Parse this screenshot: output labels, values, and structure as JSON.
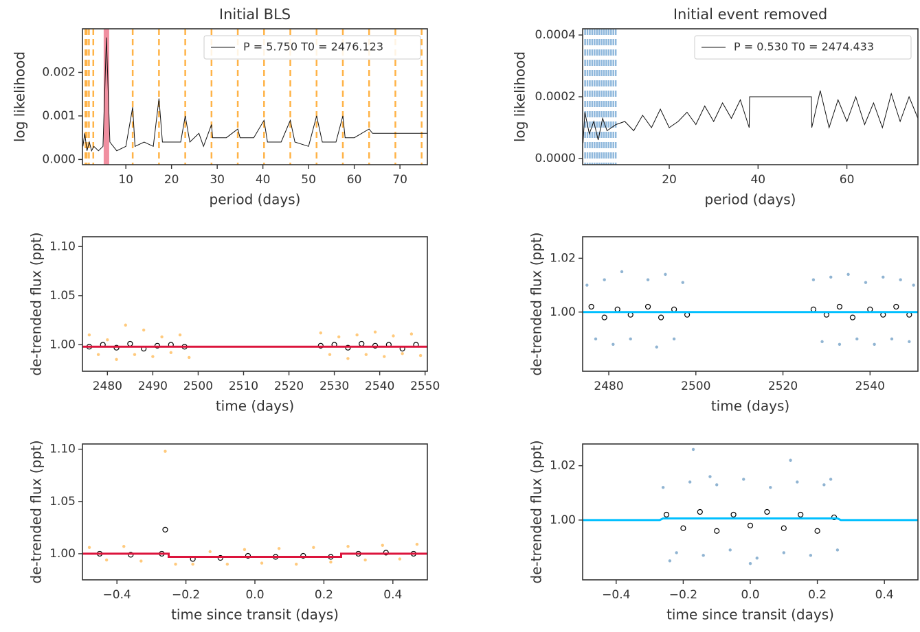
{
  "chart_data": [
    {
      "type": "line",
      "title": "Initial BLS",
      "xlabel": "period (days)",
      "ylabel": "log likelihood",
      "xlim": [
        0.5,
        76
      ],
      "ylim": [
        -0.00012,
        0.003
      ],
      "xticks": [
        10,
        20,
        30,
        40,
        50,
        60,
        70
      ],
      "yticks": [
        {
          "value": 0,
          "label": "0.000"
        },
        {
          "value": 0.001,
          "label": "0.001"
        },
        {
          "value": 0.002,
          "label": "0.002"
        }
      ],
      "legend": "upper right",
      "harmonics": [
        1.15,
        1.4375,
        1.917,
        2.875,
        11.5,
        17.25,
        23,
        28.75,
        34.5,
        40.25,
        46,
        51.75,
        57.5,
        63.25,
        69,
        74.75
      ],
      "harmonic_color": "#ffb347",
      "highlight": 5.75,
      "highlight_color": "#f08fa0",
      "series": [
        {
          "name": "P = 5.750 T0 = 2476.123",
          "style": "line",
          "color": "#111111",
          "x": [
            0.6,
            1,
            1.5,
            2,
            2.5,
            3,
            4,
            5,
            5.75,
            6.5,
            8,
            10,
            11.5,
            12,
            14,
            16,
            17.25,
            18,
            20,
            22,
            23,
            24,
            26,
            27,
            28.75,
            29,
            32,
            34.5,
            35,
            38,
            40.25,
            41,
            44,
            46,
            47,
            50,
            51.75,
            53,
            56,
            57.5,
            58,
            60,
            63.25,
            64,
            67,
            69,
            72,
            75,
            76
          ],
          "y": [
            0.0003,
            0.0006,
            0.0002,
            0.0004,
            0.0002,
            0.0003,
            0.0002,
            0.0003,
            0.0028,
            0.0004,
            0.0002,
            0.0003,
            0.0012,
            0.0003,
            0.0004,
            0.0003,
            0.0014,
            0.0004,
            0.0004,
            0.0004,
            0.001,
            0.0004,
            0.0006,
            0.0003,
            0.0008,
            0.0005,
            0.0005,
            0.0007,
            0.0005,
            0.0005,
            0.0009,
            0.0004,
            0.0004,
            0.0009,
            0.0004,
            0.0003,
            0.001,
            0.0004,
            0.0004,
            0.001,
            0.0005,
            0.0005,
            0.0007,
            0.0006,
            0.0006,
            0.0006,
            0.0006,
            0.0006,
            0.0006
          ]
        }
      ]
    },
    {
      "type": "line",
      "title": "Initial event removed",
      "xlabel": "period (days)",
      "ylabel": "log likelihood",
      "xlim": [
        0.5,
        76
      ],
      "ylim": [
        -2e-05,
        0.00042
      ],
      "xticks": [
        20,
        40,
        60
      ],
      "yticks": [
        {
          "value": 0,
          "label": "0.0000"
        },
        {
          "value": 0.0002,
          "label": "0.0002"
        },
        {
          "value": 0.0004,
          "label": "0.0004"
        }
      ],
      "legend": "upper right",
      "harmonics": [
        1.06,
        1.59,
        2.12,
        2.65,
        3.18,
        3.71,
        4.24,
        4.77,
        5.3,
        5.83,
        6.36,
        6.89,
        7.42,
        7.95
      ],
      "harmonic_color": "#8fb8dc",
      "series": [
        {
          "name": "P = 0.530 T0 = 2474.433",
          "style": "line",
          "color": "#111111",
          "x": [
            0.6,
            1,
            2,
            3,
            4,
            5,
            6,
            8,
            10,
            12,
            14,
            16,
            18,
            20,
            22,
            24,
            26,
            28,
            30,
            32,
            34,
            36,
            38,
            38.1,
            52,
            52.1,
            54,
            56,
            58,
            60,
            62,
            64,
            66,
            68,
            70,
            72,
            74,
            76
          ],
          "y": [
            5e-05,
            0.00015,
            8e-05,
            0.00012,
            6e-05,
            0.00013,
            9e-05,
            0.00011,
            0.00012,
            9e-05,
            0.00014,
            0.0001,
            0.00016,
            0.0001,
            0.00012,
            0.00015,
            0.00011,
            0.00017,
            0.00012,
            0.00018,
            0.00013,
            0.00019,
            0.0001,
            0.0002,
            0.0002,
            0.0001,
            0.00022,
            0.0001,
            0.00019,
            0.00012,
            0.0002,
            0.00011,
            0.00018,
            0.0001,
            0.00021,
            0.00012,
            0.0002,
            0.00013
          ]
        }
      ]
    },
    {
      "type": "scatter",
      "xlabel": "time (days)",
      "ylabel": "de-trended flux (ppt)",
      "xlim": [
        2474.5,
        2550.5
      ],
      "ylim": [
        0.973,
        1.11
      ],
      "xticks": [
        2480,
        2490,
        2500,
        2510,
        2520,
        2530,
        2540,
        2550
      ],
      "yticks": [
        {
          "value": 1.0,
          "label": "1.00"
        },
        {
          "value": 1.05,
          "label": "1.05"
        },
        {
          "value": 1.1,
          "label": "1.10"
        }
      ],
      "series": [
        {
          "style": "points",
          "color": "#ffa726",
          "x": [
            2476,
            2478,
            2480,
            2482,
            2484,
            2486,
            2488,
            2490,
            2492,
            2494,
            2496,
            2498,
            2527,
            2529,
            2531,
            2533,
            2535,
            2537,
            2539,
            2541,
            2543,
            2545,
            2547,
            2549
          ],
          "y": [
            1.01,
            0.99,
            1.005,
            0.985,
            1.02,
            0.99,
            1.015,
            0.988,
            1.008,
            0.992,
            1.01,
            0.987,
            1.012,
            0.99,
            1.008,
            0.986,
            1.01,
            0.99,
            1.013,
            0.988,
            1.009,
            0.991,
            1.011,
            0.989
          ]
        },
        {
          "style": "circles",
          "color": "#000000",
          "x": [
            2476,
            2479,
            2482,
            2485,
            2488,
            2491,
            2494,
            2497,
            2527,
            2530,
            2533,
            2536,
            2539,
            2542,
            2545,
            2548
          ],
          "y": [
            0.998,
            1.0,
            0.997,
            1.001,
            0.996,
            0.999,
            1.0,
            0.998,
            0.999,
            1.0,
            0.997,
            1.001,
            0.999,
            1.0,
            0.996,
            1.0
          ]
        },
        {
          "style": "line",
          "color": "#dc143c",
          "x": [
            2474.5,
            2550.5
          ],
          "y": [
            0.998,
            0.998
          ]
        }
      ]
    },
    {
      "type": "scatter",
      "xlabel": "time (days)",
      "ylabel": "de-trended flux (ppt)",
      "xlim": [
        2474,
        2551
      ],
      "ylim": [
        0.978,
        1.028
      ],
      "xticks": [
        2480,
        2500,
        2520,
        2540
      ],
      "yticks": [
        {
          "value": 1.0,
          "label": "1.00"
        },
        {
          "value": 1.02,
          "label": "1.02"
        }
      ],
      "series": [
        {
          "style": "points",
          "color": "#4682b4",
          "x": [
            2475,
            2477,
            2479,
            2481,
            2483,
            2485,
            2489,
            2491,
            2493,
            2495,
            2497,
            2527,
            2529,
            2531,
            2533,
            2535,
            2537,
            2539,
            2541,
            2543,
            2545,
            2547,
            2549,
            2550
          ],
          "y": [
            1.01,
            0.99,
            1.012,
            0.988,
            1.015,
            0.99,
            1.012,
            0.987,
            1.014,
            0.99,
            1.011,
            1.012,
            0.989,
            1.013,
            0.988,
            1.014,
            0.99,
            1.011,
            0.988,
            1.013,
            0.99,
            1.012,
            0.989,
            1.01
          ]
        },
        {
          "style": "circles",
          "color": "#000000",
          "x": [
            2476,
            2479,
            2482,
            2485,
            2489,
            2492,
            2495,
            2498,
            2527,
            2530,
            2533,
            2536,
            2540,
            2543,
            2546,
            2549
          ],
          "y": [
            1.002,
            0.998,
            1.001,
            0.999,
            1.002,
            0.998,
            1.001,
            0.999,
            1.001,
            0.999,
            1.002,
            0.998,
            1.001,
            0.999,
            1.002,
            0.999
          ]
        },
        {
          "style": "line",
          "color": "#00bfff",
          "x": [
            2474,
            2551
          ],
          "y": [
            1.0,
            1.0
          ]
        }
      ]
    },
    {
      "type": "scatter",
      "xlabel": "time since transit (days)",
      "ylabel": "de-trended flux (ppt)",
      "xlim": [
        -0.5,
        0.5
      ],
      "ylim": [
        0.975,
        1.105
      ],
      "xticks": [
        {
          "value": -0.4,
          "label": "−0.4"
        },
        {
          "value": -0.2,
          "label": "−0.2"
        },
        {
          "value": 0,
          "label": "0.0"
        },
        0.2,
        0.4
      ],
      "yticks": [
        {
          "value": 1.0,
          "label": "1.00"
        },
        {
          "value": 1.05,
          "label": "1.05"
        },
        {
          "value": 1.1,
          "label": "1.10"
        }
      ],
      "series": [
        {
          "style": "points",
          "color": "#ffa726",
          "x": [
            -0.48,
            -0.43,
            -0.38,
            -0.33,
            -0.26,
            -0.23,
            -0.18,
            -0.13,
            -0.08,
            -0.03,
            0.02,
            0.07,
            0.12,
            0.17,
            0.22,
            0.27,
            0.32,
            0.37,
            0.42,
            0.47
          ],
          "y": [
            1.006,
            0.994,
            1.007,
            0.993,
            1.098,
            0.99,
            0.99,
            1.002,
            0.99,
            1.004,
            0.991,
            1.005,
            0.99,
            1.006,
            0.992,
            1.007,
            0.994,
            1.008,
            0.995,
            1.009
          ]
        },
        {
          "style": "circles",
          "color": "#000000",
          "x": [
            -0.45,
            -0.36,
            -0.27,
            -0.26,
            -0.18,
            -0.1,
            -0.02,
            0.06,
            0.14,
            0.22,
            0.3,
            0.38,
            0.46
          ],
          "y": [
            1.0,
            0.999,
            1.0,
            1.023,
            0.995,
            0.996,
            0.998,
            0.997,
            0.998,
            0.997,
            1.0,
            1.001,
            1.0
          ]
        },
        {
          "style": "line",
          "color": "#dc143c",
          "x": [
            -0.5,
            -0.25,
            -0.25,
            0.25,
            0.25,
            0.5
          ],
          "y": [
            1.0,
            1.0,
            0.997,
            0.997,
            1.0,
            1.0
          ]
        }
      ]
    },
    {
      "type": "scatter",
      "xlabel": "time since transit (days)",
      "ylabel": "de-trended flux (ppt)",
      "xlim": [
        -0.5,
        0.5
      ],
      "ylim": [
        0.978,
        1.028
      ],
      "xticks": [
        {
          "value": -0.4,
          "label": "−0.4"
        },
        {
          "value": -0.2,
          "label": "−0.2"
        },
        {
          "value": 0,
          "label": "0.0"
        },
        0.2,
        0.4
      ],
      "yticks": [
        {
          "value": 1.0,
          "label": "1.00"
        },
        {
          "value": 1.02,
          "label": "1.02"
        }
      ],
      "series": [
        {
          "style": "points",
          "color": "#4682b4",
          "x": [
            -0.26,
            -0.22,
            -0.18,
            -0.14,
            -0.1,
            -0.06,
            -0.02,
            0.02,
            0.06,
            0.1,
            0.14,
            0.18,
            0.22,
            0.26,
            -0.24,
            -0.12,
            0.0,
            0.12,
            0.24,
            -0.17
          ],
          "y": [
            1.012,
            0.988,
            1.014,
            0.987,
            1.013,
            0.989,
            1.015,
            0.986,
            1.012,
            0.988,
            1.014,
            0.987,
            1.013,
            0.989,
            0.985,
            1.016,
            0.984,
            1.022,
            1.015,
            1.026
          ]
        },
        {
          "style": "circles",
          "color": "#000000",
          "x": [
            -0.25,
            -0.2,
            -0.15,
            -0.1,
            -0.05,
            0.0,
            0.05,
            0.1,
            0.15,
            0.2,
            0.25
          ],
          "y": [
            1.002,
            0.997,
            1.003,
            0.996,
            1.002,
            0.998,
            1.003,
            0.997,
            1.002,
            0.996,
            1.001
          ]
        },
        {
          "style": "line",
          "color": "#00bfff",
          "x": [
            -0.5,
            -0.27,
            -0.26,
            0.26,
            0.27,
            0.5
          ],
          "y": [
            1.0,
            1.0,
            1.0006,
            1.0006,
            1.0,
            1.0
          ]
        }
      ]
    }
  ]
}
